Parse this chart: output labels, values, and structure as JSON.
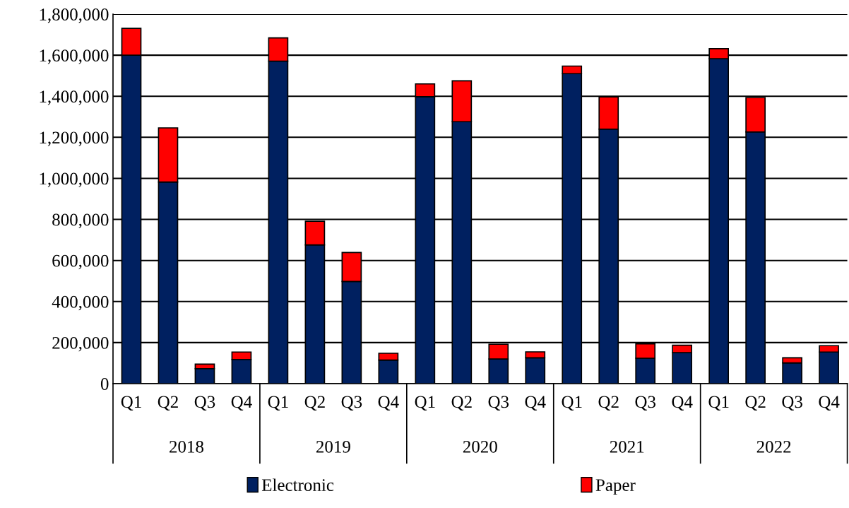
{
  "chart_data": {
    "type": "bar",
    "stacked": true,
    "categories": [
      "Q1",
      "Q2",
      "Q3",
      "Q4",
      "Q1",
      "Q2",
      "Q3",
      "Q4",
      "Q1",
      "Q2",
      "Q3",
      "Q4",
      "Q1",
      "Q2",
      "Q3",
      "Q4",
      "Q1",
      "Q2",
      "Q3",
      "Q4"
    ],
    "annotations": [
      "2018",
      "2019",
      "2020",
      "2021",
      "2022"
    ],
    "series": [
      {
        "name": "Electronic",
        "color": "#002060",
        "values": [
          1600000,
          982000,
          73000,
          118000,
          1571000,
          676000,
          498000,
          115000,
          1398000,
          1276000,
          120000,
          126000,
          1510000,
          1240000,
          124000,
          151000,
          1583000,
          1226000,
          101000,
          154000
        ]
      },
      {
        "name": "Paper",
        "color": "#ff0000",
        "values": [
          131000,
          264000,
          22000,
          36000,
          113000,
          115000,
          141000,
          33000,
          62000,
          199000,
          72000,
          29000,
          37000,
          157000,
          70000,
          36000,
          49000,
          168000,
          25000,
          31000
        ]
      }
    ],
    "ylim": [
      0,
      1800000
    ],
    "yticks": [
      {
        "value": 0,
        "label": "0"
      },
      {
        "value": 200000,
        "label": "200,000"
      },
      {
        "value": 400000,
        "label": "400,000"
      },
      {
        "value": 600000,
        "label": "600,000"
      },
      {
        "value": 800000,
        "label": "800,000"
      },
      {
        "value": 1000000,
        "label": "1,000,000"
      },
      {
        "value": 1200000,
        "label": "1,200,000"
      },
      {
        "value": 1400000,
        "label": "1,400,000"
      },
      {
        "value": 1600000,
        "label": "1,600,000"
      },
      {
        "value": 1800000,
        "label": "1,800,000"
      }
    ],
    "grid": "y",
    "legend": "bottom"
  }
}
